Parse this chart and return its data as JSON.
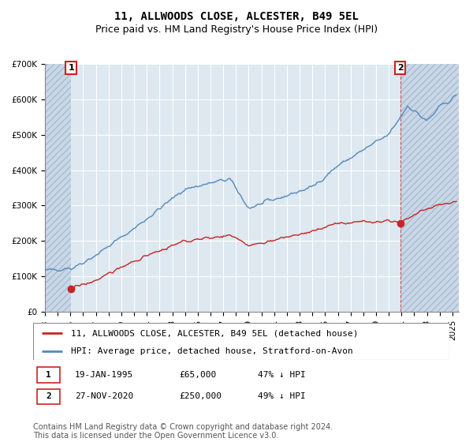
{
  "title": "11, ALLWOODS CLOSE, ALCESTER, B49 5EL",
  "subtitle": "Price paid vs. HM Land Registry's House Price Index (HPI)",
  "ylim": [
    0,
    700000
  ],
  "yticks": [
    0,
    100000,
    200000,
    300000,
    400000,
    500000,
    600000,
    700000
  ],
  "ytick_labels": [
    "£0",
    "£100K",
    "£200K",
    "£300K",
    "£400K",
    "£500K",
    "£600K",
    "£700K"
  ],
  "xlim_start": 1993.0,
  "xlim_end": 2025.5,
  "hpi_color": "#5588bb",
  "price_color": "#cc2222",
  "plot_bg_color": "#dde8f0",
  "bg_color": "#ffffff",
  "grid_color": "#ffffff",
  "hatch_bg_color": "#c8d8e8",
  "transaction1_year": 1995.05,
  "transaction1_price": 65000,
  "transaction1_label": "1",
  "transaction2_year": 2020.9,
  "transaction2_price": 250000,
  "transaction2_label": "2",
  "legend_line1": "11, ALLWOODS CLOSE, ALCESTER, B49 5EL (detached house)",
  "legend_line2": "HPI: Average price, detached house, Stratford-on-Avon",
  "table_row1": [
    "1",
    "19-JAN-1995",
    "£65,000",
    "47% ↓ HPI"
  ],
  "table_row2": [
    "2",
    "27-NOV-2020",
    "£250,000",
    "49% ↓ HPI"
  ],
  "footnote": "Contains HM Land Registry data © Crown copyright and database right 2024.\nThis data is licensed under the Open Government Licence v3.0.",
  "title_fontsize": 10,
  "subtitle_fontsize": 9,
  "tick_fontsize": 7.5,
  "legend_fontsize": 8,
  "footnote_fontsize": 7
}
